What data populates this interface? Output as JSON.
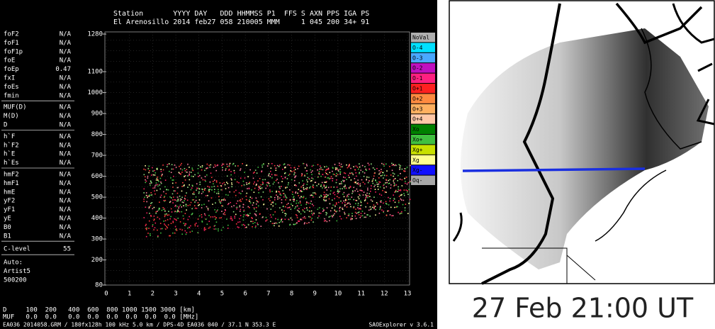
{
  "header": {
    "line1": "Station       YYYY DAY   DDD HHMMSS P1  FFS S AXN PPS IGA PS",
    "line2": "El Arenosillo 2014 feb27 058 210005 MMM     1 045 200 34+ 91"
  },
  "parameters": [
    [
      [
        "foF2",
        "N/A"
      ],
      [
        "foF1",
        "N/A"
      ],
      [
        "foF1p",
        "N/A"
      ],
      [
        "foE",
        "N/A"
      ],
      [
        "foEp",
        "0.47"
      ],
      [
        "fxI",
        "N/A"
      ],
      [
        "foEs",
        "N/A"
      ],
      [
        "fmin",
        "N/A"
      ]
    ],
    [
      [
        "MUF(D)",
        "N/A"
      ],
      [
        "M(D)",
        "N/A"
      ],
      [
        "D",
        "N/A"
      ]
    ],
    [
      [
        "h`F",
        "N/A"
      ],
      [
        "h`F2",
        "N/A"
      ],
      [
        "h`E",
        "N/A"
      ],
      [
        "h`Es",
        "N/A"
      ]
    ],
    [
      [
        "hmF2",
        "N/A"
      ],
      [
        "hmF1",
        "N/A"
      ],
      [
        "hmE",
        "N/A"
      ],
      [
        "yF2",
        "N/A"
      ],
      [
        "yF1",
        "N/A"
      ],
      [
        "yE",
        "N/A"
      ],
      [
        "B0",
        "N/A"
      ],
      [
        "B1",
        "N/A"
      ]
    ]
  ],
  "c_level": {
    "label": "C-level",
    "value": "55"
  },
  "auto": [
    "Auto:",
    "Artist5",
    "500200"
  ],
  "y_ticks": [
    "1280",
    "1100",
    "1000",
    "900",
    "800",
    "700",
    "600",
    "500",
    "400",
    "300",
    "200",
    "80"
  ],
  "x_ticks": [
    "0",
    "1",
    "2",
    "3",
    "4",
    "5",
    "6",
    "7",
    "8",
    "9",
    "10",
    "11",
    "12",
    "13"
  ],
  "legend": [
    {
      "label": "NoVal",
      "color": "#b0b0b0"
    },
    {
      "label": "O-4",
      "color": "#00e0ff"
    },
    {
      "label": "O-3",
      "color": "#4aa8ff"
    },
    {
      "label": "O-2",
      "color": "#c010c0"
    },
    {
      "label": "O-1",
      "color": "#ff2080"
    },
    {
      "label": "O+1",
      "color": "#ff2020"
    },
    {
      "label": "O+2",
      "color": "#ff8a40"
    },
    {
      "label": "O+3",
      "color": "#ffb060"
    },
    {
      "label": "O+4",
      "color": "#ffc8a8"
    },
    {
      "label": "Xo",
      "color": "#008000"
    },
    {
      "label": "Xo+",
      "color": "#40c040"
    },
    {
      "label": "Xg+",
      "color": "#c8e000"
    },
    {
      "label": "Xg",
      "color": "#ffff90"
    },
    {
      "label": "Xg-",
      "color": "#1010ff"
    },
    {
      "label": "Oq-",
      "color": "#a8a8a8"
    }
  ],
  "distance_row": "D     100  200   400  600  800 1000 1500 3000 [km]",
  "muf_row": "MUF   0.0  0.0   0.0  0.0  0.0  0.0  0.0  0.0 [MHz]",
  "footer": {
    "station": "EA036 2014058.GRM / 180fx128h 100 kHz 5.0 km / DPS-4D EA036 040 / 37.1 N 353.3 E",
    "version": "SAOExplorer v 3.6.1"
  },
  "map": {
    "caption": "27 Feb 21:00 UT"
  }
}
